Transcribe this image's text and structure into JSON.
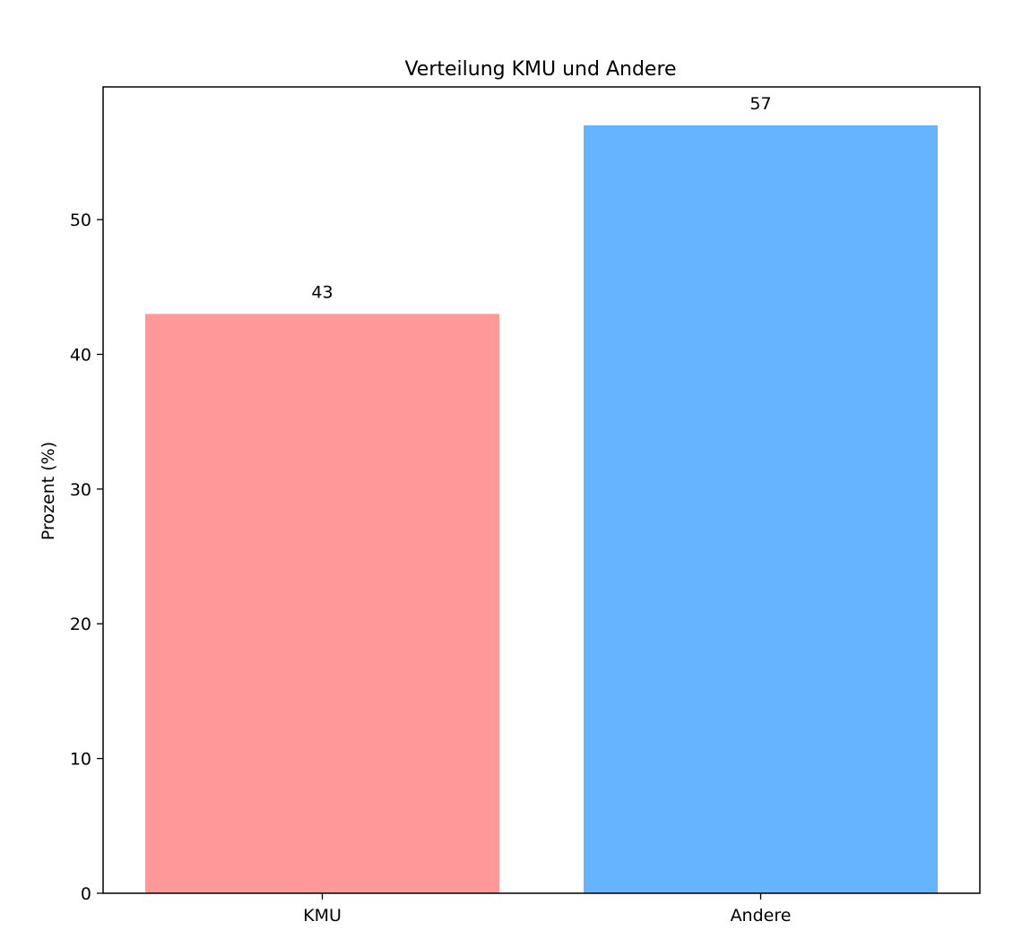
{
  "chart_data": {
    "type": "bar",
    "title": "Verteilung KMU und Andere",
    "xlabel": "",
    "ylabel": "Prozent (%)",
    "categories": [
      "KMU",
      "Andere"
    ],
    "values": [
      43,
      57
    ],
    "colors": [
      "#ff9999",
      "#66b3ff"
    ],
    "data_labels": [
      "43",
      "57"
    ],
    "ylim": [
      0,
      59.85
    ],
    "yticks": [
      0,
      10,
      20,
      30,
      40,
      50
    ],
    "ytick_labels": [
      "0",
      "10",
      "20",
      "30",
      "40",
      "50"
    ],
    "grid": false,
    "legend": "none"
  }
}
